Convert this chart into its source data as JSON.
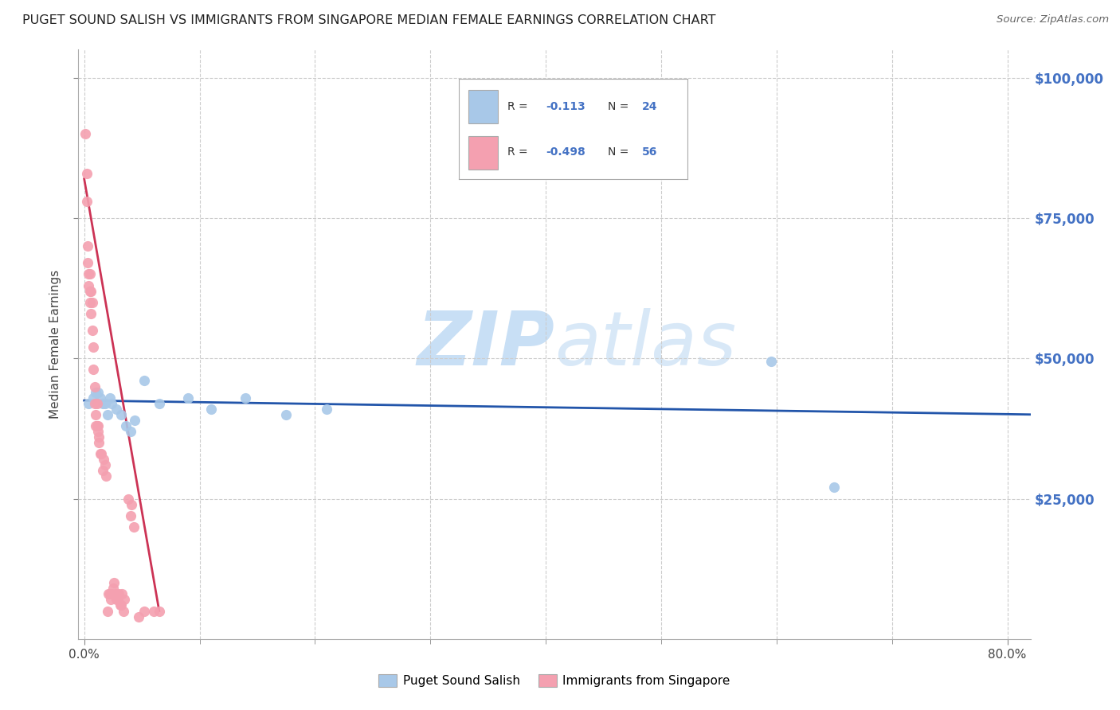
{
  "title": "PUGET SOUND SALISH VS IMMIGRANTS FROM SINGAPORE MEDIAN FEMALE EARNINGS CORRELATION CHART",
  "source": "Source: ZipAtlas.com",
  "ylabel": "Median Female Earnings",
  "xlim": [
    -0.005,
    0.82
  ],
  "ylim": [
    0,
    105000
  ],
  "ytick_vals": [
    25000,
    50000,
    75000,
    100000
  ],
  "ytick_labels": [
    "$25,000",
    "$50,000",
    "$75,000",
    "$100,000"
  ],
  "xtick_vals": [
    0.0,
    0.8
  ],
  "xtick_labels": [
    "0.0%",
    "80.0%"
  ],
  "legend1_label": "Puget Sound Salish",
  "legend2_label": "Immigrants from Singapore",
  "blue_color": "#a8c8e8",
  "pink_color": "#f4a0b0",
  "blue_line_color": "#2255aa",
  "pink_line_color": "#cc3355",
  "grid_color": "#cccccc",
  "watermark_color": "#c8dff5",
  "title_color": "#222222",
  "source_color": "#666666",
  "right_axis_label_color": "#4472c4",
  "blue_scatter_x": [
    0.004,
    0.008,
    0.01,
    0.012,
    0.014,
    0.016,
    0.018,
    0.02,
    0.022,
    0.024,
    0.028,
    0.032,
    0.036,
    0.04,
    0.044,
    0.052,
    0.065,
    0.09,
    0.11,
    0.14,
    0.175,
    0.21,
    0.595,
    0.65
  ],
  "blue_scatter_y": [
    42000,
    43000,
    44000,
    44000,
    43000,
    42000,
    42000,
    40000,
    43000,
    42000,
    41000,
    40000,
    38000,
    37000,
    39000,
    46000,
    42000,
    43000,
    41000,
    43000,
    40000,
    41000,
    49500,
    27000
  ],
  "pink_scatter_x": [
    0.001,
    0.002,
    0.002,
    0.003,
    0.003,
    0.004,
    0.004,
    0.005,
    0.005,
    0.005,
    0.006,
    0.006,
    0.007,
    0.007,
    0.008,
    0.008,
    0.009,
    0.009,
    0.01,
    0.01,
    0.011,
    0.011,
    0.012,
    0.012,
    0.013,
    0.013,
    0.014,
    0.015,
    0.016,
    0.017,
    0.018,
    0.019,
    0.02,
    0.021,
    0.022,
    0.023,
    0.024,
    0.025,
    0.026,
    0.027,
    0.028,
    0.029,
    0.03,
    0.031,
    0.032,
    0.033,
    0.034,
    0.035,
    0.038,
    0.04,
    0.041,
    0.043,
    0.047,
    0.052,
    0.06,
    0.065
  ],
  "pink_scatter_y": [
    90000,
    83000,
    78000,
    70000,
    67000,
    65000,
    63000,
    65000,
    62000,
    60000,
    62000,
    58000,
    55000,
    60000,
    52000,
    48000,
    45000,
    42000,
    40000,
    38000,
    38000,
    42000,
    38000,
    37000,
    36000,
    35000,
    33000,
    33000,
    30000,
    32000,
    31000,
    29000,
    5000,
    8000,
    8000,
    7000,
    8000,
    9000,
    10000,
    8000,
    7000,
    7000,
    8000,
    6000,
    6000,
    8000,
    5000,
    7000,
    25000,
    22000,
    24000,
    20000,
    4000,
    5000,
    5000,
    5000
  ],
  "blue_line_x0": 0.0,
  "blue_line_x1": 0.82,
  "blue_line_y0": 42500,
  "blue_line_y1": 40000,
  "pink_line_x0": 0.0,
  "pink_line_x1": 0.065,
  "pink_line_y0": 82000,
  "pink_line_y1": 5000
}
